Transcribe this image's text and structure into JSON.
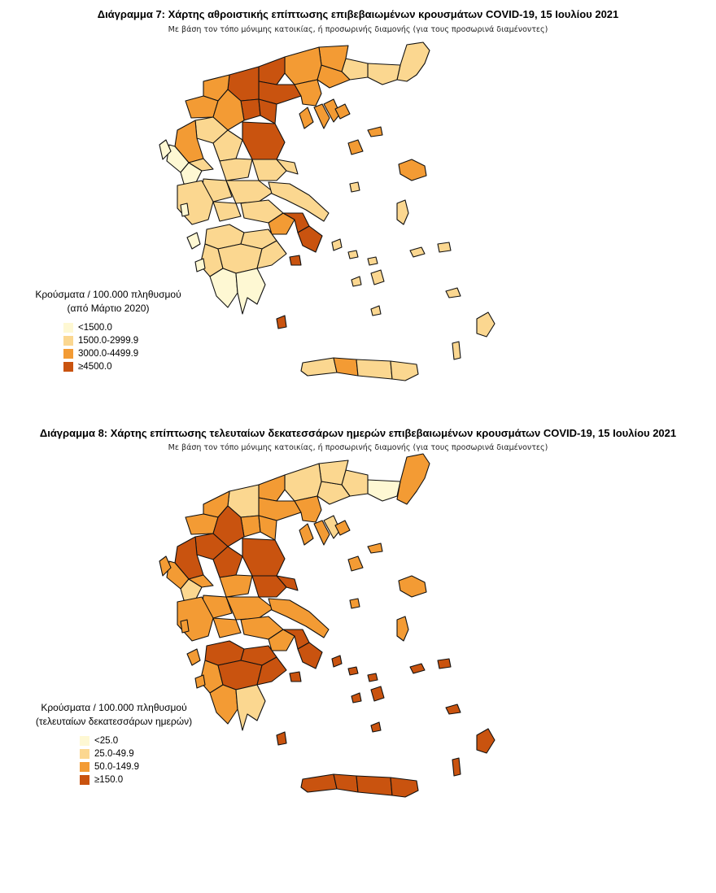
{
  "chart7": {
    "title": "Διάγραμμα 7: Χάρτης αθροιστικής επίπτωσης επιβεβαιωμένων κρουσμάτων COVID-19, 15 Ιουλίου 2021",
    "subtitle": "Με βάση τον τόπο μόνιμης κατοικίας, ή προσωρινής διαμονής (για τους προσωρινά διαμένοντες)",
    "legend_title_1": "Κρούσματα / 100.000 πληθυσμού",
    "legend_title_2": "(από Μάρτιο 2020)",
    "legend": [
      {
        "label": "<1500.0",
        "color": "#fef8d3"
      },
      {
        "label": "1500.0-2999.9",
        "color": "#fbd790"
      },
      {
        "label": "3000.0-4499.9",
        "color": "#f39b34"
      },
      {
        "label": "≥4500.0",
        "color": "#c9530f"
      }
    ]
  },
  "chart8": {
    "title": "Διάγραμμα 8: Χάρτης επίπτωσης τελευταίων δεκατεσσάρων ημερών επιβεβαιωμένων κρουσμάτων COVID-19, 15 Ιουλίου 2021",
    "subtitle": "Με βάση τον τόπο μόνιμης κατοικίας, ή προσωρινής διαμονής (για τους προσωρινά διαμένοντες)",
    "legend_title_1": "Κρούσματα / 100.000 πληθυσμού",
    "legend_title_2": "(τελευταίων δεκατεσσάρων ημερών)",
    "legend": [
      {
        "label": "<25.0",
        "color": "#fef8d3"
      },
      {
        "label": "25.0-49.9",
        "color": "#fbd790"
      },
      {
        "label": "50.0-149.9",
        "color": "#f39b34"
      },
      {
        "label": "≥150.0",
        "color": "#c9530f"
      }
    ]
  }
}
